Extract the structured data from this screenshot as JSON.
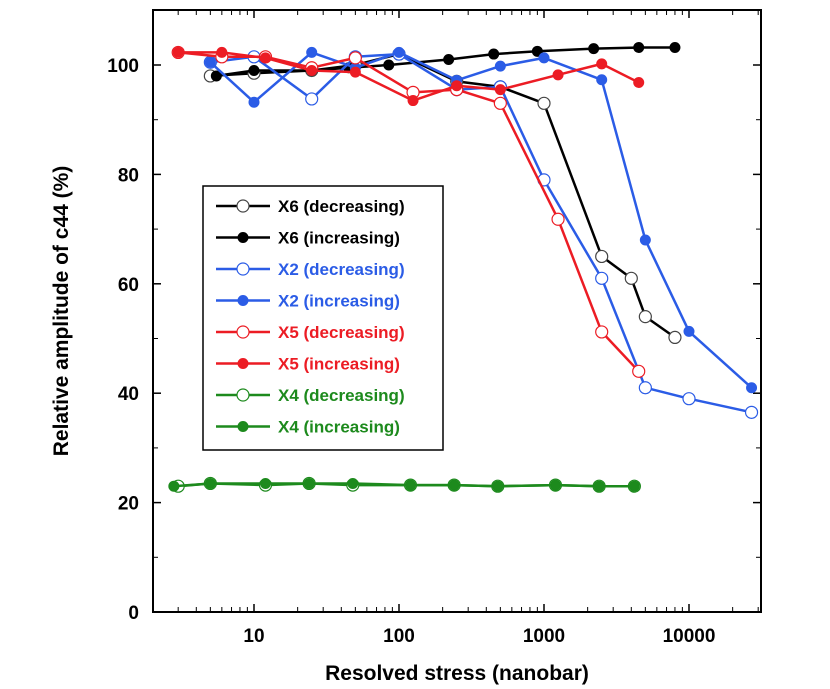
{
  "chart_data": {
    "type": "line",
    "title": "",
    "xlabel": "Resolved stress (nanobar)",
    "ylabel": "Relative amplitude of c44 (%)",
    "xscale": "log",
    "xlim": [
      2.5,
      29000
    ],
    "ylim": [
      0,
      110
    ],
    "xticks": [
      10,
      100,
      1000,
      10000
    ],
    "xtick_labels": [
      "10",
      "100",
      "1000",
      "10000"
    ],
    "yticks": [
      0,
      20,
      40,
      60,
      80,
      100
    ],
    "ytick_labels": [
      "0",
      "20",
      "40",
      "60",
      "80",
      "100"
    ],
    "grid": false,
    "legend_position": "center-left",
    "series": [
      {
        "name": "X6 (decreasing)",
        "color": "#000000",
        "marker": "open",
        "x": [
          5,
          10,
          25,
          50,
          100,
          250,
          500,
          1000,
          2500,
          4000,
          5000,
          8000
        ],
        "y": [
          98,
          98.5,
          99,
          100,
          102,
          97,
          96,
          93,
          65,
          61,
          54,
          50.2
        ]
      },
      {
        "name": "X6 (increasing)",
        "color": "#000000",
        "marker": "filled",
        "x": [
          5.5,
          10,
          25,
          45,
          85,
          220,
          450,
          900,
          2200,
          4500,
          8000
        ],
        "y": [
          98,
          99,
          99,
          99.5,
          100,
          101,
          102,
          102.5,
          103,
          103.2,
          103.2
        ]
      },
      {
        "name": "X2 (decreasing)",
        "color": "#2b5ce6",
        "marker": "open",
        "x": [
          5,
          10,
          25,
          50,
          100,
          250,
          500,
          1000,
          2500,
          5000,
          10000,
          27000
        ],
        "y": [
          100.5,
          101.5,
          93.8,
          101.5,
          102,
          95.5,
          96,
          79,
          61,
          41,
          39,
          36.5
        ]
      },
      {
        "name": "X2 (increasing)",
        "color": "#2b5ce6",
        "marker": "filled",
        "x": [
          5,
          10,
          25,
          50,
          100,
          250,
          500,
          1000,
          2500,
          5000,
          10000,
          27000
        ],
        "y": [
          100.5,
          93.2,
          102.3,
          99.5,
          102.3,
          97.2,
          99.8,
          101.3,
          97.3,
          68,
          51.3,
          41
        ]
      },
      {
        "name": "X5 (decreasing)",
        "color": "#ec1c24",
        "marker": "open",
        "x": [
          3,
          6,
          12,
          25,
          50,
          125,
          250,
          500,
          1250,
          2500,
          4500
        ],
        "y": [
          102.3,
          101.5,
          101.5,
          99.5,
          101.3,
          95,
          95.5,
          93,
          71.8,
          51.2,
          44
        ]
      },
      {
        "name": "X5 (increasing)",
        "color": "#ec1c24",
        "marker": "filled",
        "x": [
          3,
          6,
          12,
          25,
          50,
          125,
          250,
          500,
          1250,
          2500,
          4500
        ],
        "y": [
          102.3,
          102.3,
          101.3,
          99,
          98.7,
          93.5,
          96.2,
          95.5,
          98.2,
          100.2,
          96.8
        ]
      },
      {
        "name": "X4 (decreasing)",
        "color": "#1d8a1d",
        "marker": "open",
        "x": [
          3,
          5,
          12,
          24,
          48,
          120,
          240,
          480,
          1200,
          2400,
          4200
        ],
        "y": [
          23,
          23.5,
          23.2,
          23.5,
          23.2,
          23.2,
          23.2,
          23,
          23.2,
          23,
          23
        ]
      },
      {
        "name": "X4 (increasing)",
        "color": "#1d8a1d",
        "marker": "filled",
        "x": [
          2.8,
          5,
          12,
          24,
          48,
          120,
          240,
          480,
          1200,
          2400,
          4200
        ],
        "y": [
          23,
          23.5,
          23.5,
          23.5,
          23.5,
          23.2,
          23.2,
          23,
          23.2,
          23,
          23
        ]
      }
    ]
  }
}
